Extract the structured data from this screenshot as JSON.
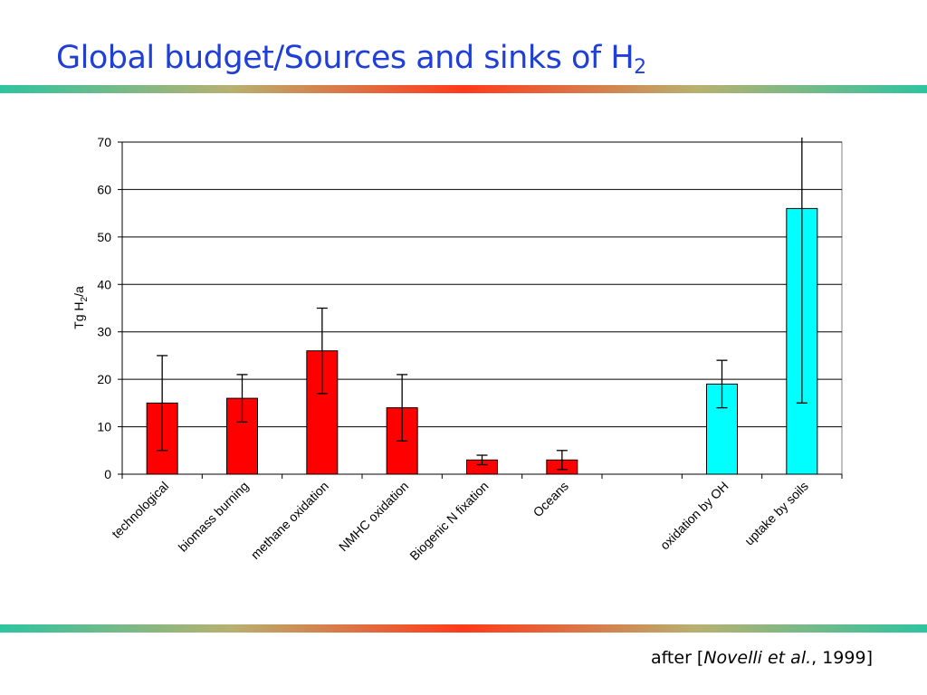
{
  "slide": {
    "title_main": "Global budget/Sources and sinks of H",
    "title_sub": "2",
    "citation_pre": "after [",
    "citation_authors": "Novelli et al.",
    "citation_post": ", 1999]"
  },
  "chart_data": {
    "type": "bar",
    "title": "",
    "ylabel": "Tg H2/a",
    "ylabel_main": "Tg H",
    "ylabel_sub": "2",
    "ylabel_tail": "/a",
    "ylim": [
      0,
      70
    ],
    "yticks": [
      0,
      10,
      20,
      30,
      40,
      50,
      60,
      70
    ],
    "grid": true,
    "categories": [
      "technological",
      "biomass burning",
      "methane oxidation",
      "NMHC oxidation",
      "Biogenic N fixation",
      "Oceans",
      "",
      "oxidation by OH",
      "uptake by soils"
    ],
    "values": [
      15,
      16,
      26,
      14,
      3,
      3,
      null,
      19,
      56
    ],
    "error_low": [
      5,
      11,
      17,
      7,
      2,
      1,
      null,
      14,
      15
    ],
    "error_high": [
      25,
      21,
      35,
      21,
      4,
      5,
      null,
      24,
      72
    ],
    "series": [
      {
        "name": "",
        "kind": "sources",
        "indices": [
          0,
          1,
          2,
          3,
          4,
          5
        ],
        "color": "#ff0000"
      },
      {
        "name": "",
        "kind": "sinks",
        "indices": [
          7,
          8
        ],
        "color": "#00ffff"
      }
    ]
  }
}
